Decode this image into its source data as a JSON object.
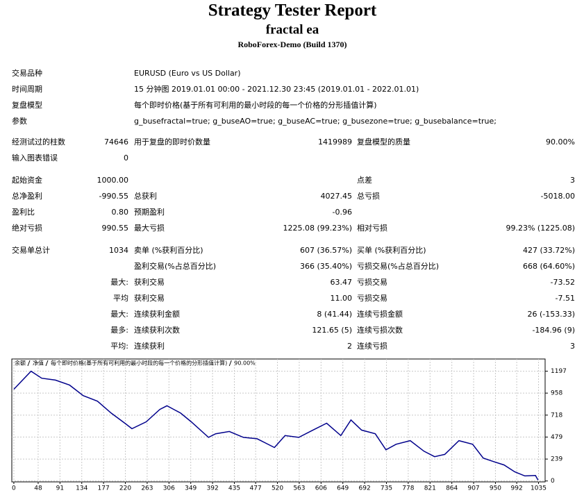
{
  "header": {
    "title": "Strategy Tester Report",
    "subtitle": "fractal ea",
    "build": "RoboForex-Demo (Build 1370)"
  },
  "info": [
    {
      "label": "交易品种",
      "value": "EURUSD (Euro vs US Dollar)"
    },
    {
      "label": "时间周期",
      "value": "15 分钟图 2019.01.01 00:00 - 2021.12.30 23:45 (2019.01.01 - 2022.01.01)"
    },
    {
      "label": "复盘模型",
      "value": "每个即时价格(基于所有可利用的最小时段的每一个价格的分形插值计算)"
    },
    {
      "label": "参数",
      "value": "g_busefractal=true; g_buseAO=true; g_buseAC=true; g_busezone=true; g_busebalance=true;"
    }
  ],
  "table": {
    "rows": [
      [
        "经测试过的柱数",
        "74646",
        "用于复盘的即时价数量",
        "1419989",
        "复盘模型的质量",
        "90.00%"
      ],
      [
        "输入图表错误",
        "0",
        null,
        null,
        null,
        null
      ],
      [
        "起始资金",
        "1000.00",
        null,
        null,
        "点差",
        "3"
      ],
      [
        "总净盈利",
        "-990.55",
        "总获利",
        "4027.45",
        "总亏损",
        "-5018.00"
      ],
      [
        "盈利比",
        "0.80",
        "预期盈利",
        "-0.96",
        null,
        null
      ],
      [
        "绝对亏损",
        "990.55",
        "最大亏损",
        "1225.08 (99.23%)",
        "相对亏损",
        "99.23% (1225.08)"
      ],
      [
        "交易单总计",
        "1034",
        "卖单 (%获利百分比)",
        "607 (36.57%)",
        "买单 (%获利百分比)",
        "427 (33.72%)"
      ],
      [
        null,
        null,
        "盈利交易(%占总百分比)",
        "366 (35.40%)",
        "亏损交易(%占总百分比)",
        "668 (64.60%)"
      ],
      [
        null,
        "最大:",
        "获利交易",
        "63.47",
        "亏损交易",
        "-73.52"
      ],
      [
        null,
        "平均",
        "获利交易",
        "11.00",
        "亏损交易",
        "-7.51"
      ],
      [
        null,
        "最大:",
        "连续获利金额",
        "8 (41.44)",
        "连续亏损金额",
        "26 (-153.33)"
      ],
      [
        null,
        "最多:",
        "连续获利次数",
        "121.65 (5)",
        "连续亏损次数",
        "-184.96 (9)"
      ],
      [
        null,
        "平均:",
        "连续获利",
        "2",
        "连续亏损",
        "3"
      ]
    ]
  },
  "chart_data": {
    "type": "line",
    "legend": [
      {
        "text": "余额",
        "color": "#0000c0"
      },
      {
        "text": "净值",
        "color": "#008000"
      },
      {
        "text": "每个即时价格(基于所有可利用的最小时段的每一个价格的分形插值计算)",
        "color": "#000000"
      },
      {
        "text": "90.00%",
        "color": "#000000"
      }
    ],
    "x": [
      0,
      34,
      55,
      82,
      110,
      137,
      165,
      192,
      219,
      233,
      261,
      288,
      302,
      329,
      350,
      384,
      398,
      425,
      453,
      480,
      514,
      535,
      562,
      590,
      617,
      645,
      665,
      686,
      713,
      734,
      754,
      782,
      809,
      830,
      850,
      878,
      905,
      926,
      947,
      967,
      988,
      1008,
      1029,
      1034
    ],
    "series": [
      {
        "color": "#00008b",
        "values": [
          1000,
          1197,
          1120,
          1100,
          1045,
          930,
          870,
          740,
          630,
          570,
          645,
          780,
          820,
          740,
          645,
          475,
          515,
          540,
          475,
          460,
          365,
          495,
          475,
          555,
          630,
          495,
          665,
          555,
          515,
          340,
          400,
          440,
          325,
          265,
          290,
          440,
          400,
          250,
          210,
          175,
          100,
          55,
          60,
          9.45
        ]
      }
    ],
    "xlim": [
      -4,
      1048
    ],
    "ylim": [
      -10,
      1330
    ],
    "xticks": [
      0,
      48,
      91,
      134,
      177,
      220,
      263,
      306,
      349,
      392,
      435,
      477,
      520,
      563,
      606,
      649,
      692,
      735,
      778,
      821,
      864,
      907,
      950,
      992,
      1035
    ],
    "yticks": [
      0,
      239,
      479,
      718,
      958,
      1197
    ],
    "grid": true
  }
}
